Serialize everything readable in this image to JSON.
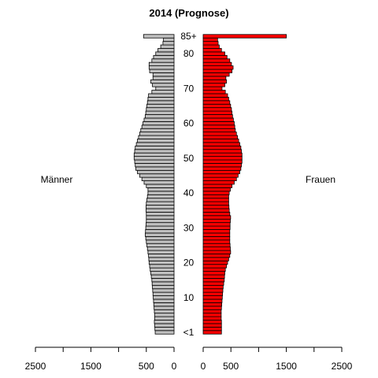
{
  "chart_data": {
    "type": "bar",
    "title": "2014 (Prognose)",
    "left_label": "Männer",
    "right_label": "Frauen",
    "colors": {
      "left_bar": "#c0c0c0",
      "right_bar": "#ff0000",
      "edge": "#000000"
    },
    "age_tick_labels": [
      {
        "age": 0,
        "label": "<1"
      },
      {
        "age": 10,
        "label": "10"
      },
      {
        "age": 20,
        "label": "20"
      },
      {
        "age": 30,
        "label": "30"
      },
      {
        "age": 40,
        "label": "40"
      },
      {
        "age": 50,
        "label": "50"
      },
      {
        "age": 60,
        "label": "60"
      },
      {
        "age": 70,
        "label": "70"
      },
      {
        "age": 80,
        "label": "80"
      },
      {
        "age": 85,
        "label": "85+"
      }
    ],
    "x_ticks_left": [
      2500,
      1500,
      500,
      0
    ],
    "x_ticks_right": [
      0,
      500,
      1500,
      2500
    ],
    "xlim": [
      0,
      2500
    ],
    "ages": [
      0,
      1,
      2,
      3,
      4,
      5,
      6,
      7,
      8,
      9,
      10,
      11,
      12,
      13,
      14,
      15,
      16,
      17,
      18,
      19,
      20,
      21,
      22,
      23,
      24,
      25,
      26,
      27,
      28,
      29,
      30,
      31,
      32,
      33,
      34,
      35,
      36,
      37,
      38,
      39,
      40,
      41,
      42,
      43,
      44,
      45,
      46,
      47,
      48,
      49,
      50,
      51,
      52,
      53,
      54,
      55,
      56,
      57,
      58,
      59,
      60,
      61,
      62,
      63,
      64,
      65,
      66,
      67,
      68,
      69,
      70,
      71,
      72,
      73,
      74,
      75,
      76,
      77,
      78,
      79,
      80,
      81,
      82,
      83,
      84,
      85
    ],
    "series": [
      {
        "name": "Männer",
        "values": [
          340,
          345,
          350,
          355,
          350,
          350,
          355,
          360,
          365,
          370,
          375,
          380,
          385,
          390,
          395,
          400,
          410,
          420,
          430,
          440,
          450,
          455,
          460,
          470,
          480,
          490,
          500,
          510,
          520,
          515,
          510,
          505,
          500,
          500,
          500,
          505,
          505,
          500,
          490,
          480,
          470,
          470,
          500,
          540,
          580,
          620,
          660,
          690,
          700,
          710,
          720,
          720,
          710,
          700,
          680,
          660,
          640,
          620,
          600,
          580,
          560,
          540,
          520,
          510,
          500,
          490,
          480,
          470,
          460,
          400,
          330,
          390,
          420,
          380,
          380,
          440,
          450,
          450,
          400,
          370,
          330,
          290,
          240,
          200,
          190,
          550
        ]
      },
      {
        "name": "Frauen",
        "values": [
          330,
          330,
          330,
          330,
          325,
          325,
          325,
          330,
          335,
          340,
          345,
          350,
          355,
          360,
          370,
          380,
          385,
          390,
          400,
          420,
          440,
          460,
          480,
          495,
          490,
          485,
          480,
          480,
          480,
          480,
          485,
          485,
          490,
          495,
          480,
          470,
          465,
          460,
          460,
          460,
          470,
          490,
          520,
          560,
          600,
          630,
          660,
          680,
          690,
          700,
          700,
          700,
          690,
          680,
          660,
          640,
          620,
          600,
          580,
          570,
          560,
          545,
          530,
          520,
          510,
          495,
          480,
          460,
          440,
          400,
          340,
          390,
          420,
          410,
          470,
          520,
          540,
          510,
          480,
          430,
          390,
          330,
          290,
          270,
          260,
          1500
        ]
      }
    ]
  }
}
